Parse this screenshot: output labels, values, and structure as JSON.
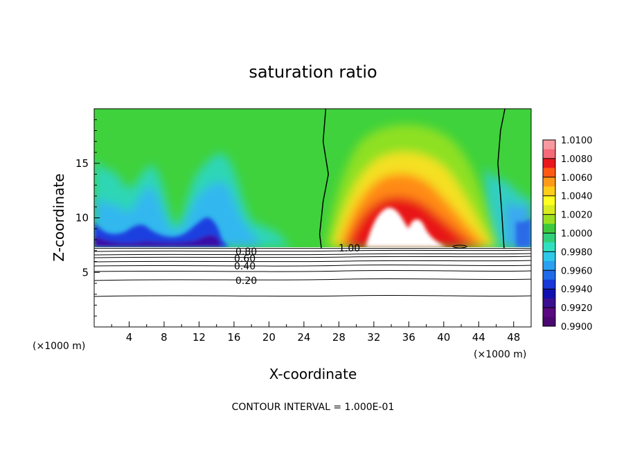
{
  "chart_data": {
    "type": "heatmap",
    "title": "saturation ratio",
    "xlabel": "X-coordinate",
    "ylabel": "Z-coordinate",
    "x_unit_left": "(×1000 m)",
    "x_unit_right": "(×1000 m)",
    "footer": "CONTOUR INTERVAL = 1.000E-01",
    "xlim": [
      0,
      50
    ],
    "ylim": [
      0,
      20
    ],
    "x_ticks": [
      4,
      8,
      12,
      16,
      20,
      24,
      28,
      32,
      36,
      40,
      44,
      48
    ],
    "y_ticks": [
      5,
      10,
      15
    ],
    "colorbar": {
      "min": 0.99,
      "max": 1.01,
      "ticks": [
        "1.0100",
        "1.0080",
        "1.0060",
        "1.0040",
        "1.0020",
        "1.0000",
        "0.9980",
        "0.9960",
        "0.9940",
        "0.9920",
        "0.9900"
      ]
    },
    "contour_labels": [
      "0.80",
      "0.60",
      "0.40",
      "0.20",
      "1.00"
    ],
    "cloud_boundary": {
      "left": [
        [
          26.5,
          20
        ],
        [
          26.2,
          17
        ],
        [
          26.8,
          14
        ],
        [
          26.2,
          11.5
        ],
        [
          25.8,
          8.5
        ],
        [
          26,
          7.2
        ]
      ],
      "right": [
        [
          47,
          20
        ],
        [
          46.5,
          18
        ],
        [
          46.2,
          15
        ],
        [
          46.6,
          11
        ],
        [
          46.9,
          7.2
        ]
      ]
    },
    "cloud_base_z": 7.2
  }
}
